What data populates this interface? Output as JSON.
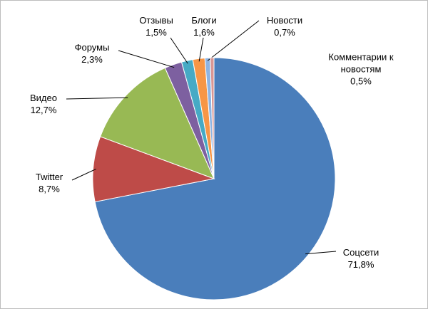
{
  "chart_data": {
    "type": "pie",
    "categories": [
      "Соцсети",
      "Twitter",
      "Видео",
      "Форумы",
      "Отзывы",
      "Блоги",
      "Новости",
      "Комментарии к новостям"
    ],
    "values": [
      71.8,
      8.7,
      12.7,
      2.3,
      1.5,
      1.6,
      0.7,
      0.5
    ],
    "value_labels": [
      "71,8%",
      "8,7%",
      "12,7%",
      "2,3%",
      "1,5%",
      "1,6%",
      "0,7%",
      "0,5%"
    ],
    "colors": [
      "#4a7ebb",
      "#be4b48",
      "#98b954",
      "#7d60a0",
      "#46aac5",
      "#f79646",
      "#8eb4e3",
      "#d99694"
    ]
  }
}
